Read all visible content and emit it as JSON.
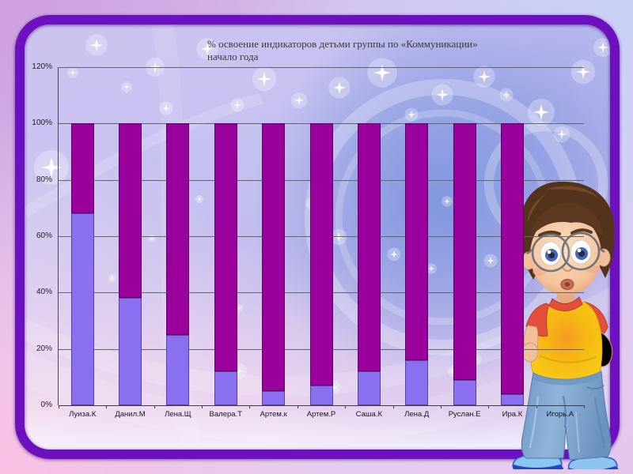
{
  "chart_data": {
    "type": "bar",
    "stacked": true,
    "title": "% освоение индикаторов детьми группы  по  «Коммуникации» начало года",
    "title_line1": "% освоение индикаторов детьми группы  по  «Коммуникации»",
    "title_line2": "начало года",
    "categories": [
      "Луиза.К",
      "Данил.М",
      "Лена.Щ",
      "Валера.Т",
      "Артем.к",
      "Артем.Р",
      "Саша.К",
      "Лена.Д",
      "Руслан.Е",
      "Ира.К",
      "Игорь.А"
    ],
    "series": [
      {
        "name": "segment_bottom",
        "color": "#8a6ff0",
        "values": [
          68,
          38,
          25,
          12,
          5,
          7,
          12,
          16,
          9,
          4,
          0
        ]
      },
      {
        "name": "segment_top",
        "color": "#9a009b",
        "values": [
          32,
          62,
          75,
          88,
          95,
          93,
          88,
          84,
          91,
          96,
          0
        ]
      }
    ],
    "ylim": [
      0,
      120
    ],
    "ytick_labels": [
      "0%",
      "20%",
      "40%",
      "60%",
      "80%",
      "100%",
      "120%"
    ],
    "grid": true,
    "legend": false,
    "xlabel": "",
    "ylabel": ""
  }
}
